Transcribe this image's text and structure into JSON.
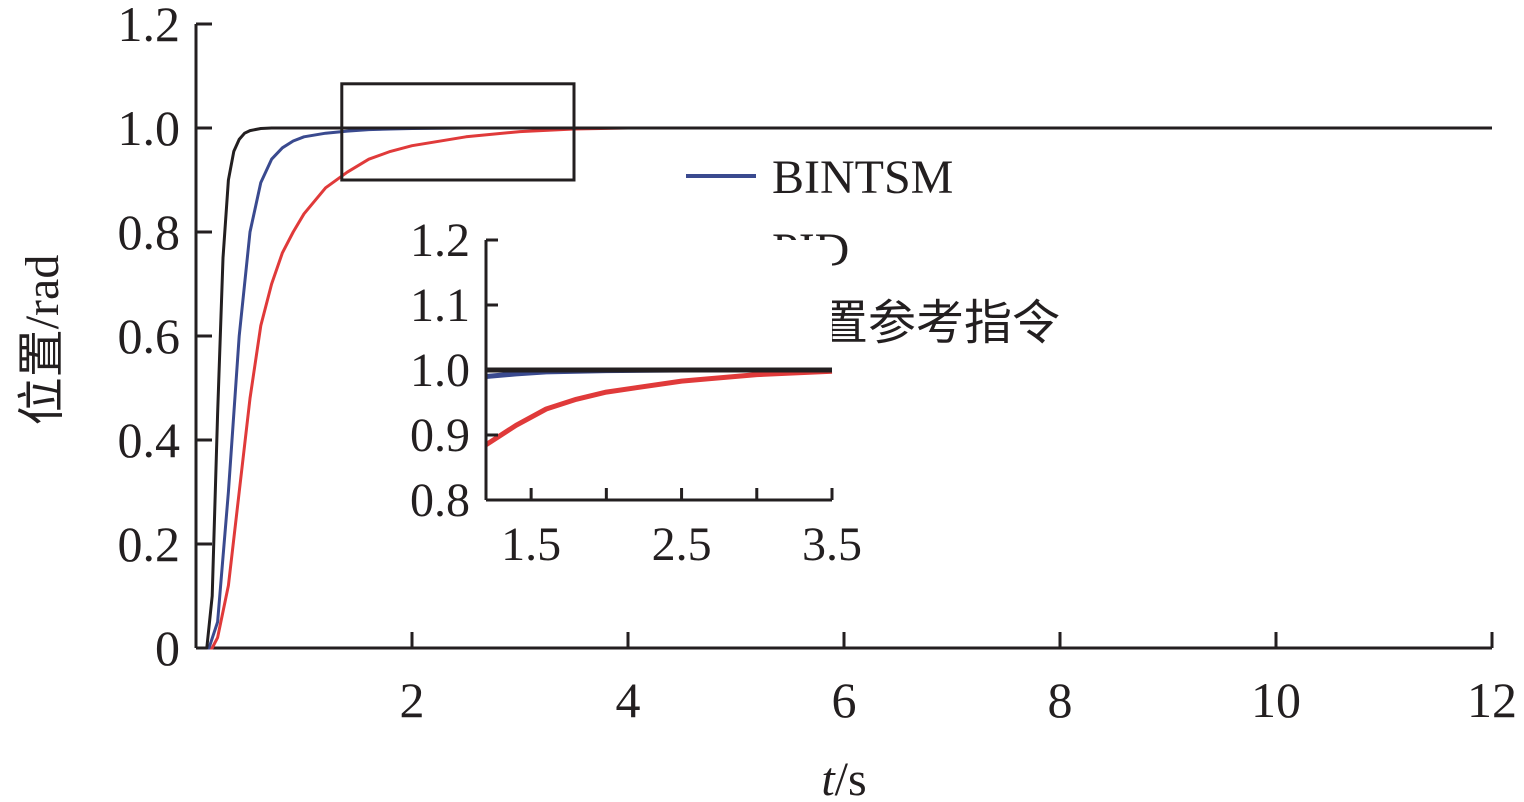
{
  "chart_data": {
    "type": "line",
    "xlabel": {
      "italic": "t",
      "rest": "/s"
    },
    "ylabel": "位置/rad",
    "xlim": [
      0,
      12
    ],
    "ylim": [
      0,
      1.2
    ],
    "x_ticks": [
      2,
      4,
      6,
      8,
      10,
      12
    ],
    "x_tick_labels": [
      "2",
      "4",
      "6",
      "8",
      "10",
      "12"
    ],
    "y_ticks": [
      0,
      0.2,
      0.4,
      0.6,
      0.8,
      1.0,
      1.2
    ],
    "y_tick_labels": [
      "0",
      "0.2",
      "0.4",
      "0.6",
      "0.8",
      "1.0",
      "1.2"
    ],
    "grid": false,
    "legend_position": "center-right",
    "series": [
      {
        "name": "BINTSM",
        "color": "#3a4a8f",
        "x": [
          0,
          0.12,
          0.2,
          0.3,
          0.4,
          0.5,
          0.6,
          0.7,
          0.8,
          0.9,
          1.0,
          1.2,
          1.4,
          1.6,
          1.8,
          2.0,
          2.5,
          3.0,
          12
        ],
        "y": [
          0,
          0,
          0.05,
          0.3,
          0.6,
          0.8,
          0.895,
          0.94,
          0.962,
          0.975,
          0.983,
          0.99,
          0.994,
          0.997,
          0.998,
          0.999,
          1.0,
          1.0,
          1.0
        ]
      },
      {
        "name": "PID",
        "color": "#e03a3a",
        "x": [
          0,
          0.15,
          0.2,
          0.3,
          0.4,
          0.5,
          0.6,
          0.7,
          0.8,
          0.9,
          1.0,
          1.2,
          1.4,
          1.6,
          1.8,
          2.0,
          2.5,
          3.0,
          3.5,
          4.0,
          12
        ],
        "y": [
          0,
          0,
          0.02,
          0.12,
          0.3,
          0.48,
          0.62,
          0.7,
          0.76,
          0.8,
          0.835,
          0.885,
          0.915,
          0.94,
          0.955,
          0.966,
          0.983,
          0.993,
          0.998,
          1.0,
          1.0
        ]
      },
      {
        "name": "位置参考指令",
        "color": "#231f20",
        "x": [
          0,
          0.1,
          0.15,
          0.2,
          0.25,
          0.3,
          0.35,
          0.4,
          0.45,
          0.5,
          0.6,
          0.7,
          0.8,
          12
        ],
        "y": [
          0,
          0,
          0.1,
          0.45,
          0.75,
          0.9,
          0.955,
          0.978,
          0.99,
          0.995,
          0.999,
          1.0,
          1.0,
          1.0
        ]
      }
    ],
    "zoom_box": {
      "x_range": [
        1.35,
        3.5
      ],
      "y_range": [
        0.9,
        1.085
      ]
    },
    "inset": {
      "xlim": [
        1.2,
        3.5
      ],
      "ylim": [
        0.8,
        1.2
      ],
      "x_ticks": [
        1.5,
        2.5,
        3.5
      ],
      "x_tick_labels": [
        "1.5",
        "2.5",
        "3.5"
      ],
      "x_minor_ticks": [
        2.0,
        3.0
      ],
      "y_ticks": [
        0.8,
        0.9,
        1.0,
        1.1,
        1.2
      ],
      "y_tick_labels": [
        "0.8",
        "0.9",
        "1.0",
        "1.1",
        "1.2"
      ]
    }
  }
}
